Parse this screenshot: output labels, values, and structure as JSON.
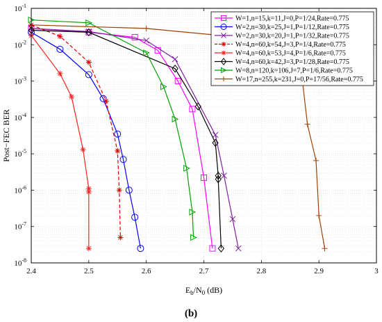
{
  "chart_data": {
    "type": "line",
    "xlabel_main": "E",
    "xlabel_sub1": "b",
    "xlabel_mid": "/N",
    "xlabel_sub2": "0",
    "xlabel_unit": " (dB)",
    "ylabel": "Post−FEC BER",
    "caption": "(b)",
    "xlim": [
      2.4,
      3.0
    ],
    "ylim_exp": [
      -8,
      -1
    ],
    "y_scale": "log",
    "grid": "on",
    "legend_position": "top-right",
    "x_ticks": [
      "2.4",
      "2.5",
      "2.6",
      "2.7",
      "2.8",
      "2.9",
      "3"
    ],
    "y_ticks": [
      {
        "base": "10",
        "exp": "-1"
      },
      {
        "base": "10",
        "exp": "-2"
      },
      {
        "base": "10",
        "exp": "-3"
      },
      {
        "base": "10",
        "exp": "-4"
      },
      {
        "base": "10",
        "exp": "-5"
      },
      {
        "base": "10",
        "exp": "-6"
      },
      {
        "base": "10",
        "exp": "-7"
      },
      {
        "base": "10",
        "exp": "-8"
      }
    ],
    "series": [
      {
        "name": "W=1,n=15,k=11,J=0,P=1/24,Rate=0.775",
        "color": "#ff00ff",
        "marker": "square",
        "dash": "solid",
        "x": [
          2.4,
          2.5,
          2.58,
          2.62,
          2.655,
          2.68,
          2.7,
          2.715
        ],
        "y": [
          0.028,
          0.022,
          0.016,
          0.007,
          0.001,
          0.00017,
          2.2e-06,
          2.5e-08
        ]
      },
      {
        "name": "W=2,n=30,k=25,J=1,P=1/12,Rate=0.775",
        "color": "#0000ff",
        "marker": "circle",
        "dash": "solid",
        "x": [
          2.4,
          2.45,
          2.5,
          2.525,
          2.55,
          2.56,
          2.57,
          2.58,
          2.59
        ],
        "y": [
          0.022,
          0.0075,
          0.0015,
          0.00033,
          3.5e-05,
          7e-06,
          1e-06,
          1.8e-07,
          2.5e-08
        ]
      },
      {
        "name": "W=2,n=30,k=20,J=1,P=1/32,Rate=0.775",
        "color": "#7f1f9f",
        "marker": "x",
        "dash": "solid",
        "x": [
          2.4,
          2.5,
          2.6,
          2.65,
          2.72,
          2.735,
          2.75,
          2.76
        ],
        "y": [
          0.028,
          0.023,
          0.013,
          0.004,
          3.3e-05,
          2.5e-06,
          1.6e-07,
          2.5e-08
        ]
      },
      {
        "name": "W=4,n=60,k=54,J=3,P=1/4,Rate=0.775",
        "color": "#e00000",
        "marker": "star",
        "dash": "dashed",
        "x": [
          2.4,
          2.45,
          2.5,
          2.53,
          2.55,
          2.553,
          2.555
        ],
        "y": [
          0.035,
          0.017,
          0.0033,
          0.00028,
          1.2e-05,
          1e-06,
          5e-08
        ]
      },
      {
        "name": "W=4,n=60,k=53,J=4,P=1/6,Rate=0.775",
        "color": "#ff2020",
        "marker": "star",
        "dash": "solid",
        "x": [
          2.4,
          2.45,
          2.47,
          2.49,
          2.5,
          2.5,
          2.5
        ],
        "y": [
          0.018,
          0.0016,
          0.00037,
          1.3e-05,
          1.1e-06,
          9e-07,
          2.5e-08
        ]
      },
      {
        "name": "W=4,n=60,k=42,J=3,P=1/28,Rate=0.775",
        "color": "#000000",
        "marker": "diamond",
        "dash": "solid",
        "x": [
          2.4,
          2.5,
          2.65,
          2.69,
          2.72,
          2.725,
          2.725,
          2.73
        ],
        "y": [
          0.025,
          0.022,
          0.0022,
          0.0002,
          2e-05,
          2.5e-06,
          2e-06,
          2.5e-08
        ]
      },
      {
        "name": "W=8,n=120,k=106,J=7,P=1/6,Rate=0.775",
        "color": "#00a000",
        "marker": "triangle-right",
        "dash": "solid",
        "x": [
          2.4,
          2.5,
          2.6,
          2.63,
          2.65,
          2.67,
          2.68,
          2.682
        ],
        "y": [
          0.048,
          0.04,
          0.006,
          0.0007,
          9e-05,
          4e-06,
          2.5e-07,
          5e-08
        ]
      },
      {
        "name": "W=17,n=255,k=231,J=0,P=17/56,Rate=0.775",
        "color": "#a04000",
        "marker": "plus",
        "dash": "solid",
        "x": [
          2.4,
          2.6,
          2.8,
          2.87,
          2.88,
          2.895,
          2.9,
          2.91
        ],
        "y": [
          0.035,
          0.028,
          0.014,
          0.0016,
          6.5e-05,
          6.5e-06,
          2e-07,
          2.5e-08
        ]
      }
    ]
  }
}
